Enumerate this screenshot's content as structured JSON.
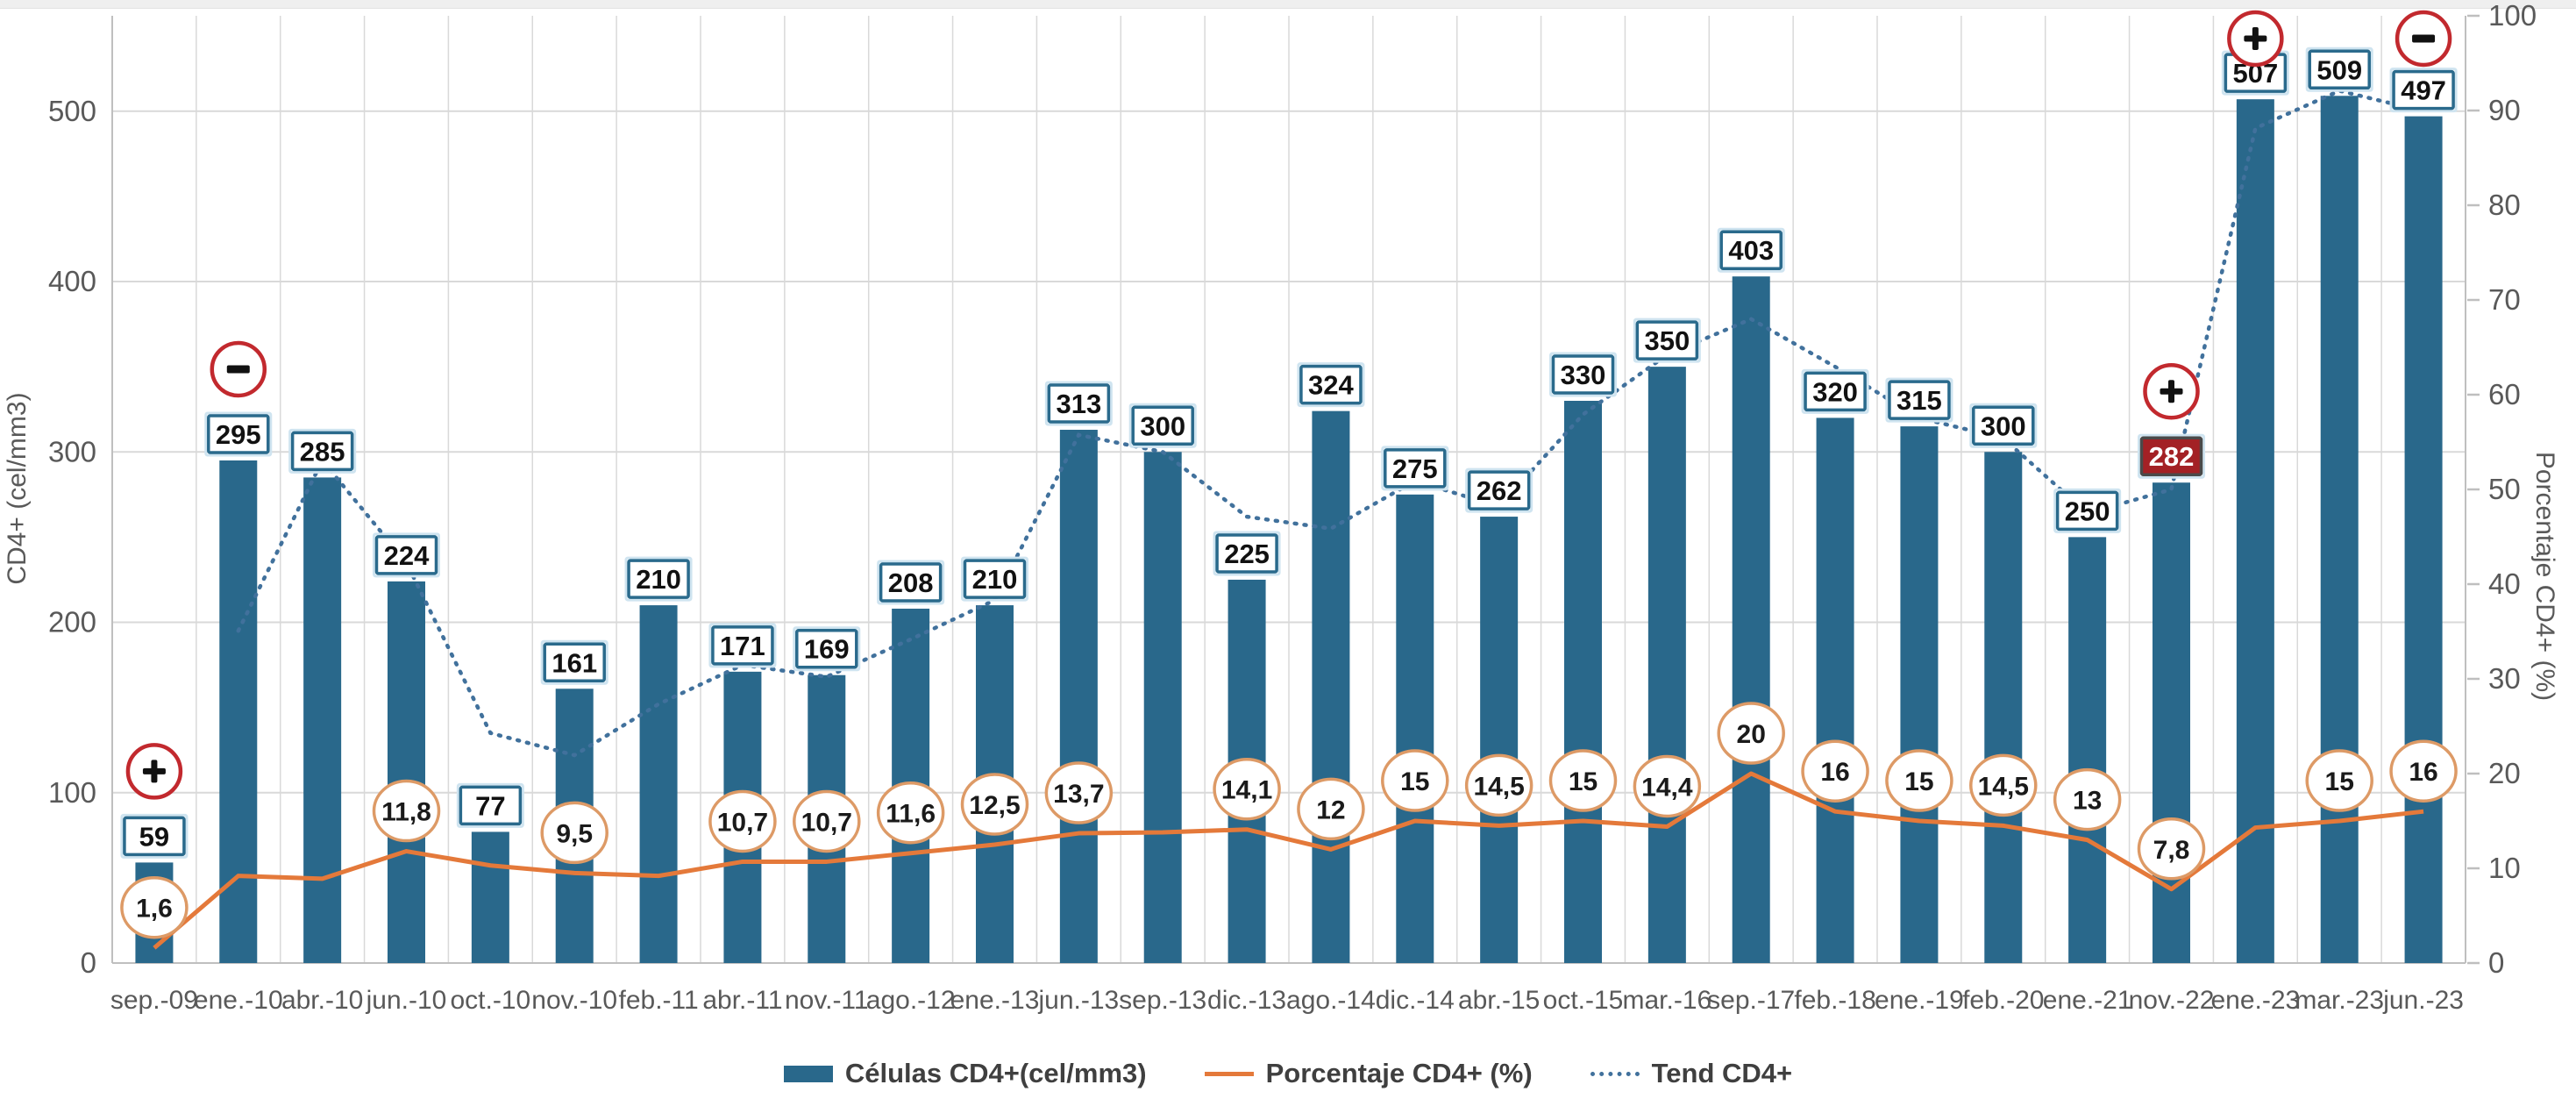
{
  "chart": {
    "left_axis": {
      "title": "CD4+ (cel/mm3)",
      "ticks": [
        0,
        100,
        200,
        300,
        400,
        500
      ],
      "max": 556
    },
    "right_axis": {
      "title": "Porcentaje CD4+ (%)",
      "ticks": [
        0,
        10,
        20,
        30,
        40,
        50,
        60,
        70,
        80,
        90,
        100
      ],
      "max": 100
    }
  },
  "chart_data": {
    "type": "bar",
    "title": "",
    "categories": [
      "sep.-09",
      "ene.-10",
      "abr.-10",
      "jun.-10",
      "oct.-10",
      "nov.-10",
      "feb.-11",
      "abr.-11",
      "nov.-11",
      "ago.-12",
      "ene.-13",
      "jun.-13",
      "sep.-13",
      "dic.-13",
      "ago.-14",
      "dic.-14",
      "abr.-15",
      "oct.-15",
      "mar.-16",
      "sep.-17",
      "feb.-18",
      "ene.-19",
      "feb.-20",
      "ene.-21",
      "nov.-22",
      "ene.-23",
      "mar.-23",
      "jun.-23"
    ],
    "series": [
      {
        "name": "Células CD4+(cel/mm3)",
        "type": "bar",
        "axis": "left",
        "values": [
          59,
          295,
          285,
          224,
          77,
          161,
          210,
          171,
          169,
          208,
          210,
          313,
          300,
          225,
          324,
          275,
          262,
          330,
          350,
          403,
          320,
          315,
          300,
          250,
          282,
          507,
          509,
          497
        ]
      },
      {
        "name": "Porcentaje CD4+ (%)",
        "type": "line",
        "axis": "right",
        "point_labels": [
          "1,6",
          null,
          null,
          "11,8",
          null,
          "9,5",
          null,
          "10,7",
          "10,7",
          "11,6",
          "12,5",
          "13,7",
          null,
          "14,1",
          "12",
          "15",
          "14,5",
          "15",
          "14,4",
          "20",
          "16",
          "15",
          "14,5",
          "13",
          "7,8",
          null,
          "15",
          "16"
        ],
        "values_est": [
          1.6,
          9.2,
          8.9,
          11.8,
          10.3,
          9.5,
          9.2,
          10.7,
          10.7,
          11.6,
          12.5,
          13.7,
          13.8,
          14.1,
          12,
          15,
          14.5,
          15,
          14.4,
          20,
          16,
          15,
          14.5,
          13,
          7.8,
          14.3,
          15,
          16
        ]
      },
      {
        "name": "Tend CD4+",
        "type": "dotted_line",
        "axis": "left",
        "values_est": [
          null,
          195,
          295,
          235,
          135,
          122,
          152,
          175,
          168,
          190,
          213,
          310,
          300,
          262,
          255,
          283,
          268,
          322,
          357,
          378,
          350,
          320,
          308,
          264,
          278,
          490,
          512,
          500
        ]
      }
    ],
    "annotations": {
      "markers": [
        {
          "category": "sep.-09",
          "sign": "plus"
        },
        {
          "category": "ene.-10",
          "sign": "minus"
        },
        {
          "category": "nov.-22",
          "sign": "plus"
        },
        {
          "category": "ene.-23",
          "sign": "plus"
        },
        {
          "category": "jun.-23",
          "sign": "minus"
        }
      ],
      "highlighted_bar_label": {
        "category": "nov.-22",
        "value": 282
      }
    },
    "ylim_left": [
      0,
      556
    ],
    "ylim_right": [
      0,
      100
    ],
    "grid": {
      "horizontal_at_left_ticks": [
        100,
        200,
        300,
        400,
        500
      ],
      "vertical": "category-boundaries",
      "legend_position": "bottom"
    }
  },
  "colors": {
    "bar": "#29688b",
    "bar_label_border": "#2a6a8c",
    "bar_label_halo": "#cfe4f0",
    "pct_line": "#e4793a",
    "pct_circle_border": "#dd9a66",
    "trend_line": "#41719c",
    "marker_ring": "#c2292e",
    "marker_glyph": "#111111",
    "highlight_bg": "#a32125",
    "highlight_border": "#4a4a4a",
    "grid": "#d9d9d9",
    "axis": "#bfbfbf",
    "tick_text": "#595959",
    "legend_text": "#3f3f3f"
  }
}
